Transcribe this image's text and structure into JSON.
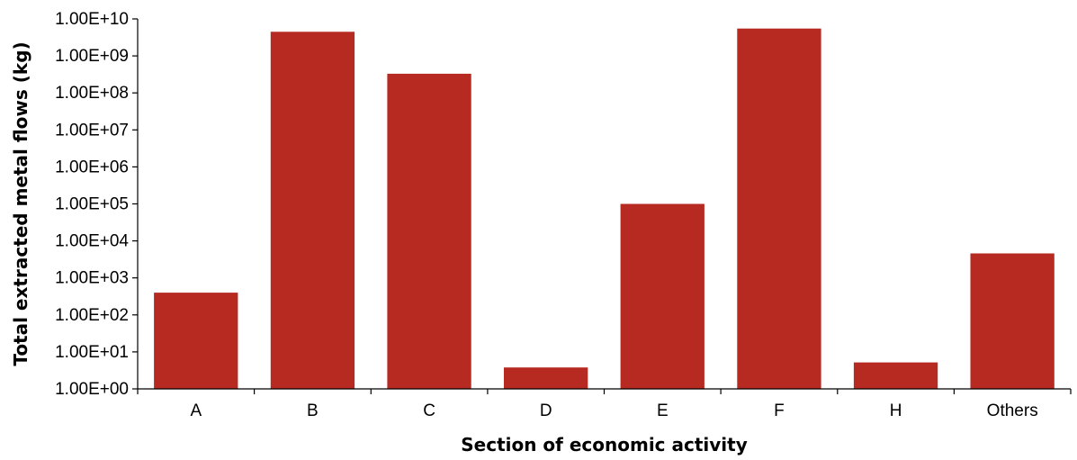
{
  "chart_data": {
    "type": "bar",
    "title": "",
    "xlabel": "Section of economic activity",
    "ylabel": "Total extracted metal flows (kg)",
    "yscale": "log",
    "ylim": [
      1,
      10000000000
    ],
    "grid": false,
    "legend": "none",
    "categories": [
      "A",
      "B",
      "C",
      "D",
      "E",
      "F",
      "H",
      "Others"
    ],
    "values": [
      400,
      4500000000,
      330000000,
      3.8,
      100000,
      5500000000,
      5.2,
      4600
    ],
    "y_tick_values": [
      1,
      10,
      100,
      1000,
      10000,
      100000,
      1000000,
      10000000,
      100000000,
      1000000000,
      10000000000
    ],
    "y_tick_labels": [
      "1.00E+00",
      "1.00E+01",
      "1.00E+02",
      "1.00E+03",
      "1.00E+04",
      "1.00E+05",
      "1.00E+06",
      "1.00E+07",
      "1.00E+08",
      "1.00E+09",
      "1.00E+10"
    ],
    "bar_color": "#b72a22"
  }
}
